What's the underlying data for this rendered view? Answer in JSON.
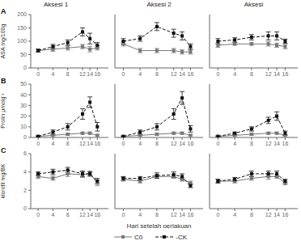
{
  "chart_data": [
    {
      "type": "line",
      "title": "Aksesi 1",
      "ylabel": "ASA mg/100g",
      "annotations": [
        "A"
      ],
      "x": [
        0,
        4,
        8,
        12,
        14,
        16
      ],
      "xlim": [
        -2,
        19
      ],
      "xticks": [
        0,
        4,
        8,
        12,
        14,
        16
      ],
      "ylim": [
        0,
        200
      ],
      "yticks": [
        0,
        50,
        100,
        150,
        200
      ],
      "series": [
        {
          "name": "C0",
          "color": "#777777",
          "line_style": "solid",
          "marker": "square",
          "values": [
            65,
            70,
            75,
            80,
            70,
            75
          ],
          "errors": [
            5,
            8,
            8,
            8,
            10,
            8
          ]
        },
        {
          "name": "-CK",
          "color": "#111111",
          "line_style": "dashed",
          "marker": "square",
          "values": [
            65,
            80,
            95,
            135,
            110,
            85
          ],
          "errors": [
            5,
            8,
            10,
            15,
            20,
            10
          ]
        }
      ]
    },
    {
      "type": "line",
      "title": "Aksesi 2",
      "tick_labels": "x",
      "x": [
        0,
        4,
        8,
        12,
        14,
        16
      ],
      "xlim": [
        -2,
        19
      ],
      "xticks": [
        0,
        4,
        8,
        12,
        14,
        16
      ],
      "ylim": [
        0,
        200
      ],
      "yticks": [
        0,
        50,
        100,
        150,
        200
      ],
      "series": [
        {
          "name": "C0",
          "color": "#777777",
          "line_style": "solid",
          "marker": "square",
          "values": [
            90,
            65,
            65,
            65,
            60,
            60
          ],
          "errors": [
            8,
            8,
            8,
            8,
            8,
            8
          ]
        },
        {
          "name": "-CK",
          "color": "#111111",
          "line_style": "dashed",
          "marker": "square",
          "values": [
            100,
            110,
            155,
            130,
            120,
            80
          ],
          "errors": [
            10,
            10,
            15,
            15,
            15,
            10
          ]
        }
      ]
    },
    {
      "type": "line",
      "title": "Aksesi",
      "tick_labels": "x",
      "x": [
        0,
        4,
        8,
        12,
        14,
        16
      ],
      "xlim": [
        -2,
        19
      ],
      "xticks": [
        0,
        4,
        8,
        12,
        14,
        16
      ],
      "ylim": [
        0,
        200
      ],
      "yticks": [
        0,
        50,
        100,
        150,
        200
      ],
      "series": [
        {
          "name": "C0",
          "color": "#777777",
          "line_style": "solid",
          "marker": "square",
          "values": [
            85,
            90,
            90,
            90,
            85,
            80
          ],
          "errors": [
            8,
            5,
            5,
            8,
            8,
            8
          ]
        },
        {
          "name": "-CK",
          "color": "#111111",
          "line_style": "dashed",
          "marker": "square",
          "values": [
            100,
            105,
            115,
            120,
            120,
            100
          ],
          "errors": [
            10,
            8,
            10,
            15,
            15,
            8
          ]
        }
      ]
    },
    {
      "type": "line",
      "ylabel": "Prolin μmolg⁻¹",
      "annotations": [
        "B"
      ],
      "x": [
        0,
        4,
        8,
        12,
        14,
        16
      ],
      "xlim": [
        -2,
        19
      ],
      "xticks": [
        0,
        4,
        8,
        12,
        14,
        16
      ],
      "ylim": [
        0,
        50
      ],
      "yticks": [
        0,
        10,
        20,
        30,
        40,
        50
      ],
      "series": [
        {
          "name": "C0",
          "color": "#777777",
          "line_style": "solid",
          "marker": "square",
          "values": [
            1,
            2,
            3,
            4,
            4,
            2
          ],
          "errors": [
            0.5,
            0.5,
            1,
            1,
            1,
            0.5
          ]
        },
        {
          "name": "-CK",
          "color": "#111111",
          "line_style": "dashed",
          "marker": "square",
          "values": [
            1,
            5,
            10,
            22,
            33,
            10
          ],
          "errors": [
            0.5,
            2,
            3,
            5,
            5,
            4
          ]
        }
      ]
    },
    {
      "type": "line",
      "tick_labels": "x",
      "x": [
        0,
        4,
        8,
        12,
        14,
        16
      ],
      "xlim": [
        -2,
        19
      ],
      "xticks": [
        0,
        4,
        8,
        12,
        14,
        16
      ],
      "ylim": [
        0,
        50
      ],
      "yticks": [
        0,
        10,
        20,
        30,
        40,
        50
      ],
      "series": [
        {
          "name": "C0",
          "color": "#777777",
          "line_style": "solid",
          "marker": "square",
          "values": [
            1,
            2,
            3,
            4,
            4,
            2
          ],
          "errors": [
            0.5,
            0.5,
            1,
            1,
            1,
            0.5
          ]
        },
        {
          "name": "-CK",
          "color": "#111111",
          "line_style": "dashed",
          "marker": "square",
          "values": [
            1,
            5,
            10,
            22,
            37,
            8
          ],
          "errors": [
            0.5,
            2,
            3,
            5,
            6,
            3
          ]
        }
      ]
    },
    {
      "type": "line",
      "tick_labels": "x",
      "x": [
        0,
        4,
        8,
        12,
        14,
        16
      ],
      "xlim": [
        -2,
        19
      ],
      "xticks": [
        0,
        4,
        8,
        12,
        14,
        16
      ],
      "ylim": [
        0,
        50
      ],
      "yticks": [
        0,
        10,
        20,
        30,
        40,
        50
      ],
      "series": [
        {
          "name": "C0",
          "color": "#777777",
          "line_style": "solid",
          "marker": "square",
          "values": [
            1,
            2,
            3,
            4,
            4,
            2
          ],
          "errors": [
            0.5,
            0.5,
            1,
            1,
            1,
            0.5
          ]
        },
        {
          "name": "-CK",
          "color": "#111111",
          "line_style": "dashed",
          "marker": "square",
          "values": [
            1,
            4,
            8,
            16,
            20,
            4
          ],
          "errors": [
            0.5,
            1,
            2,
            3,
            4,
            2
          ]
        }
      ]
    },
    {
      "type": "line",
      "ylabel": "klorofil mg/BK",
      "annotations": [
        "C"
      ],
      "x": [
        0,
        4,
        8,
        12,
        14,
        16
      ],
      "xlim": [
        -2,
        19
      ],
      "xticks": [
        0,
        4,
        8,
        12,
        14,
        16
      ],
      "ylim": [
        0,
        6
      ],
      "yticks": [
        0,
        2,
        4,
        6
      ],
      "series": [
        {
          "name": "C0",
          "color": "#777777",
          "line_style": "solid",
          "marker": "square",
          "values": [
            3.5,
            3.3,
            3.8,
            3.7,
            3.8,
            2.8
          ],
          "errors": [
            0.2,
            0.2,
            0.3,
            0.3,
            0.3,
            0.3
          ]
        },
        {
          "name": "-CK",
          "color": "#111111",
          "line_style": "dashed",
          "marker": "square",
          "values": [
            3.8,
            4.0,
            4.2,
            3.8,
            3.8,
            3.0
          ],
          "errors": [
            0.2,
            0.3,
            0.3,
            0.3,
            0.2,
            0.3
          ]
        }
      ]
    },
    {
      "type": "line",
      "xlabel": "Hari setelah perlakuan",
      "legend": "bottom",
      "tick_labels": "x",
      "x": [
        0,
        4,
        8,
        12,
        14,
        16
      ],
      "xlim": [
        -2,
        19
      ],
      "xticks": [
        0,
        4,
        8,
        12,
        14,
        16
      ],
      "ylim": [
        0,
        6
      ],
      "yticks": [
        0,
        2,
        4,
        6
      ],
      "series": [
        {
          "name": "C0",
          "color": "#777777",
          "line_style": "solid",
          "marker": "square",
          "values": [
            3.2,
            3.0,
            3.5,
            3.5,
            3.2,
            2.8
          ],
          "errors": [
            0.2,
            0.2,
            0.2,
            0.2,
            0.2,
            0.2
          ]
        },
        {
          "name": "-CK",
          "color": "#111111",
          "line_style": "dashed",
          "marker": "square",
          "values": [
            3.3,
            3.3,
            3.6,
            3.7,
            3.5,
            2.5
          ],
          "errors": [
            0.2,
            0.2,
            0.3,
            0.3,
            0.3,
            0.2
          ]
        }
      ]
    },
    {
      "type": "line",
      "tick_labels": "x",
      "x": [
        0,
        4,
        8,
        12,
        14,
        16
      ],
      "xlim": [
        -2,
        19
      ],
      "xticks": [
        0,
        4,
        8,
        12,
        14,
        16
      ],
      "ylim": [
        0,
        6
      ],
      "yticks": [
        0,
        2,
        4,
        6
      ],
      "series": [
        {
          "name": "C0",
          "color": "#777777",
          "line_style": "solid",
          "marker": "square",
          "values": [
            3.0,
            3.0,
            3.3,
            3.5,
            3.5,
            2.8
          ],
          "errors": [
            0.2,
            0.2,
            0.2,
            0.3,
            0.2,
            0.2
          ]
        },
        {
          "name": "-CK",
          "color": "#111111",
          "line_style": "dashed",
          "marker": "square",
          "values": [
            3.0,
            3.2,
            3.8,
            3.8,
            3.8,
            3.0
          ],
          "errors": [
            0.2,
            0.2,
            0.3,
            0.3,
            0.3,
            0.2
          ]
        }
      ]
    }
  ]
}
